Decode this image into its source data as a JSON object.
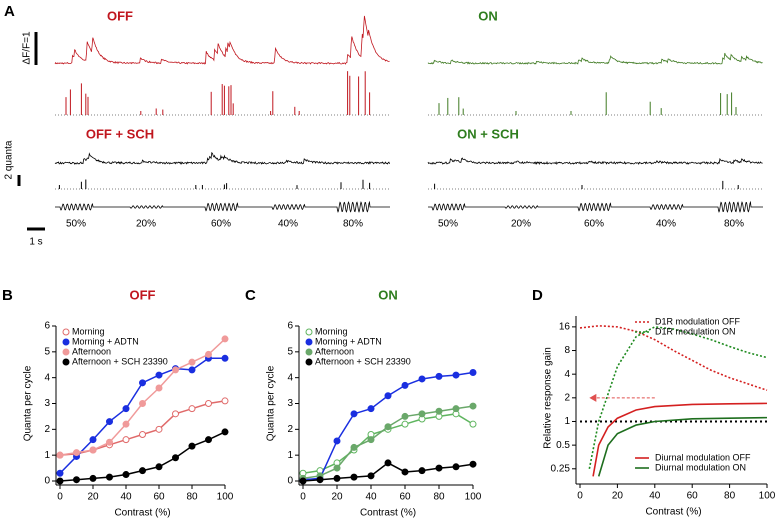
{
  "panel_a": {
    "letter": "A",
    "off_title": "OFF",
    "on_title": "ON",
    "off_sch_title": "OFF + SCH",
    "on_sch_title": "ON + SCH",
    "scale_df": "ΔF/F=1",
    "scale_quanta": "2 quanta",
    "scale_time": "1 s",
    "contrasts_left": [
      "50%",
      "20%",
      "60%",
      "40%",
      "80%"
    ],
    "contrasts_right": [
      "50%",
      "20%",
      "60%",
      "40%",
      "80%"
    ]
  },
  "chart_data": [
    {
      "type": "line",
      "letter": "B",
      "title": "OFF",
      "title_color": "#c0161e",
      "xlabel": "Contrast (%)",
      "ylabel": "Quanta per cycle",
      "x": [
        0,
        10,
        20,
        30,
        40,
        50,
        60,
        70,
        80,
        90,
        100
      ],
      "xlim": [
        0,
        100
      ],
      "xticks": [
        0,
        20,
        40,
        60,
        80,
        100
      ],
      "ylim": [
        0,
        6
      ],
      "yticks": [
        0,
        1,
        2,
        3,
        4,
        5,
        6
      ],
      "legend": "upper left",
      "series": [
        {
          "name": "Morning",
          "color": "#e06a6a",
          "marker": "open",
          "values": [
            1.0,
            1.05,
            1.2,
            1.4,
            1.6,
            1.8,
            2.0,
            2.6,
            2.8,
            3.0,
            3.1
          ]
        },
        {
          "name": "Morning + ADTN",
          "color": "#1a2fe0",
          "marker": "filled",
          "values": [
            0.3,
            0.95,
            1.6,
            2.3,
            2.8,
            3.8,
            4.1,
            4.35,
            4.3,
            4.75,
            4.75
          ]
        },
        {
          "name": "Afternoon",
          "color": "#f09a9a",
          "marker": "filled",
          "values": [
            1.0,
            1.1,
            1.2,
            1.5,
            2.2,
            3.0,
            3.6,
            4.3,
            4.6,
            4.9,
            5.5
          ]
        },
        {
          "name": "Afternoon + SCH 23390",
          "color": "#000000",
          "marker": "filled",
          "values": [
            0.0,
            0.05,
            0.1,
            0.15,
            0.25,
            0.4,
            0.55,
            0.9,
            1.35,
            1.6,
            1.9
          ]
        }
      ]
    },
    {
      "type": "line",
      "letter": "C",
      "title": "ON",
      "title_color": "#2e7d1e",
      "xlabel": "Contrast (%)",
      "ylabel": "Quanta per cycle",
      "x": [
        0,
        10,
        20,
        30,
        40,
        50,
        60,
        70,
        80,
        90,
        100
      ],
      "xlim": [
        0,
        100
      ],
      "xticks": [
        0,
        20,
        40,
        60,
        80,
        100
      ],
      "ylim": [
        0,
        6
      ],
      "yticks": [
        0,
        1,
        2,
        3,
        4,
        5,
        6
      ],
      "legend": "upper left",
      "series": [
        {
          "name": "Morning",
          "color": "#5fb55f",
          "marker": "open",
          "values": [
            0.3,
            0.4,
            0.7,
            1.2,
            1.8,
            2.0,
            2.2,
            2.4,
            2.5,
            2.6,
            2.2
          ]
        },
        {
          "name": "Morning + ADTN",
          "color": "#1a2fe0",
          "marker": "filled",
          "values": [
            0.05,
            0.1,
            1.55,
            2.6,
            2.8,
            3.3,
            3.7,
            3.95,
            4.05,
            4.1,
            4.2
          ]
        },
        {
          "name": "Afternoon",
          "color": "#6aa86a",
          "marker": "filled",
          "values": [
            0.1,
            0.2,
            0.5,
            1.3,
            1.6,
            2.1,
            2.5,
            2.6,
            2.7,
            2.8,
            2.9
          ]
        },
        {
          "name": "Afternoon + SCH 23390",
          "color": "#000000",
          "marker": "filled",
          "values": [
            0.0,
            0.05,
            0.1,
            0.15,
            0.2,
            0.7,
            0.35,
            0.4,
            0.5,
            0.55,
            0.65
          ]
        }
      ]
    },
    {
      "type": "curve",
      "letter": "D",
      "xlabel": "Contrast (%)",
      "ylabel": "Relative response gain",
      "xlim": [
        0,
        100
      ],
      "xticks": [
        0,
        20,
        40,
        60,
        80,
        100
      ],
      "log_y": true,
      "ylim": [
        0.18,
        22
      ],
      "yticks": [
        0.25,
        0.5,
        1,
        2,
        4,
        8,
        16
      ],
      "hline": 1,
      "arrow": {
        "y": 2,
        "x": [
          40,
          5
        ],
        "color": "#e0504f"
      },
      "series": [
        {
          "name": "D1R modulation OFF",
          "color": "#d42020",
          "linestyle": "dotted",
          "legend": "upper right",
          "x": [
            0,
            10,
            20,
            30,
            40,
            50,
            60,
            70,
            80,
            90,
            100
          ],
          "values": [
            15.5,
            16.5,
            16,
            14,
            11,
            8,
            6,
            4.5,
            3.6,
            3,
            2.5
          ]
        },
        {
          "name": "D1R modulation ON",
          "color": "#1e8a1e",
          "linestyle": "dotted",
          "legend": "upper right",
          "x": [
            5,
            10,
            20,
            30,
            40,
            50,
            60,
            70,
            80,
            90,
            100
          ],
          "values": [
            0.25,
            1,
            5,
            12,
            16,
            15,
            13,
            11,
            9,
            7.5,
            6.5
          ]
        },
        {
          "name": "Diurnal modulation OFF",
          "color": "#d42020",
          "linestyle": "solid",
          "legend": "lower right",
          "x": [
            7,
            10,
            15,
            20,
            30,
            40,
            60,
            80,
            100
          ],
          "values": [
            0.2,
            0.5,
            0.85,
            1.1,
            1.4,
            1.55,
            1.65,
            1.68,
            1.7
          ]
        },
        {
          "name": "Diurnal modulation ON",
          "color": "#1e6e1e",
          "linestyle": "solid",
          "legend": "lower right",
          "x": [
            10,
            15,
            20,
            30,
            40,
            60,
            80,
            100
          ],
          "values": [
            0.2,
            0.5,
            0.7,
            0.9,
            1.0,
            1.08,
            1.1,
            1.12
          ]
        }
      ]
    }
  ]
}
